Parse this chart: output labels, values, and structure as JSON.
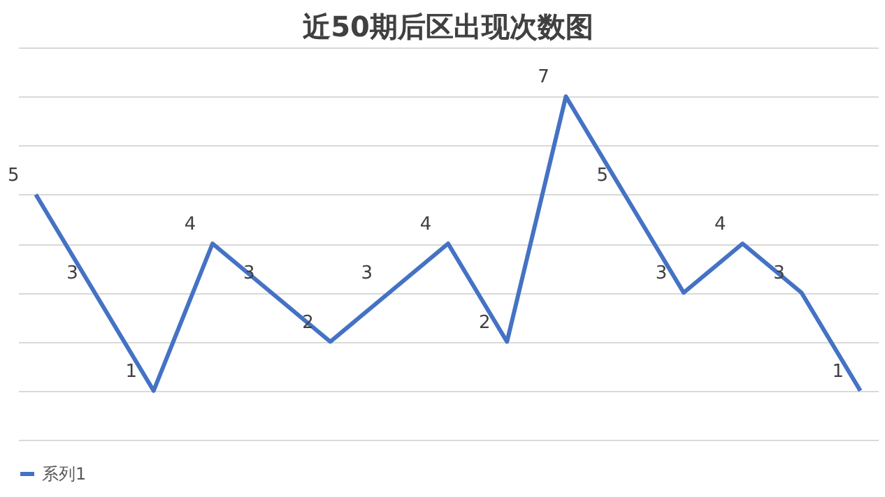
{
  "chart_data": {
    "type": "line",
    "title": "近50期后区出现次数图",
    "categories": [
      null,
      null,
      null,
      null,
      null,
      null,
      null,
      null,
      null,
      null,
      null,
      null,
      null,
      null,
      null
    ],
    "series": [
      {
        "name": "系列1",
        "color": "#4472c4",
        "values": [
          5,
          3,
          1,
          4,
          3,
          2,
          3,
          4,
          2,
          7,
          5,
          3,
          4,
          3,
          1
        ]
      }
    ],
    "ylim": [
      0,
      8
    ],
    "yticks": [
      {
        "value": 0,
        "label": null
      },
      {
        "value": 1,
        "label": null
      },
      {
        "value": 2,
        "label": null
      },
      {
        "value": 3,
        "label": null
      },
      {
        "value": 4,
        "label": null
      },
      {
        "value": 5,
        "label": null
      },
      {
        "value": 6,
        "label": null
      },
      {
        "value": 7,
        "label": null
      },
      {
        "value": 8,
        "label": null
      }
    ],
    "grid": "y",
    "tick_labels": false,
    "legend": "bottom",
    "data_labels": true,
    "marker": "none",
    "line_style": "solid"
  }
}
